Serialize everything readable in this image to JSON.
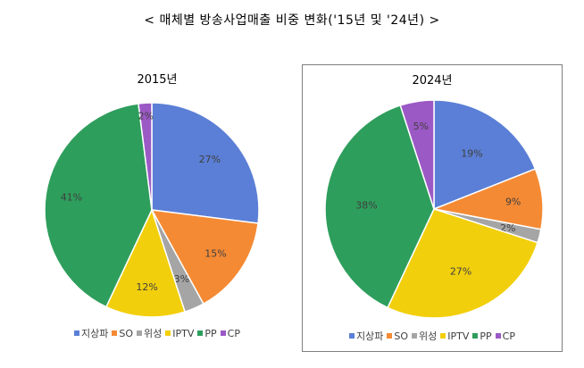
{
  "title": "< 매체별 방송사업매출 비중 변화('15년 및 '24년) >",
  "colors": {
    "지상파": "#5b7fd6",
    "SO": "#f58a34",
    "위성": "#a5a5a5",
    "IPTV": "#f2cf0c",
    "PP": "#2e9e5c",
    "CP": "#9b59c5"
  },
  "chart_data": [
    {
      "type": "pie",
      "title": "2015년",
      "categories": [
        "지상파",
        "SO",
        "위성",
        "IPTV",
        "PP",
        "CP"
      ],
      "values": [
        27,
        15,
        3,
        12,
        41,
        2
      ],
      "labels": [
        "27%",
        "15%",
        "3%",
        "12%",
        "41%",
        "2%"
      ],
      "legend_position": "bottom"
    },
    {
      "type": "pie",
      "title": "2024년",
      "categories": [
        "지상파",
        "SO",
        "위성",
        "IPTV",
        "PP",
        "CP"
      ],
      "values": [
        19,
        9,
        2,
        27,
        38,
        5
      ],
      "labels": [
        "19%",
        "9%",
        "2%",
        "27%",
        "38%",
        "5%"
      ],
      "legend_position": "bottom"
    }
  ]
}
